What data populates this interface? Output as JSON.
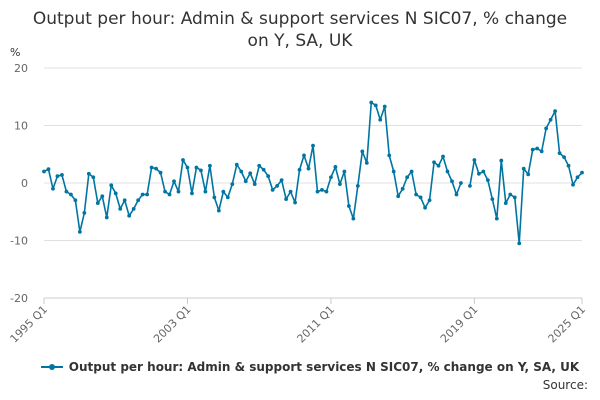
{
  "title": "Output per hour: Admin & support services N SIC07, % change on Y, SA, UK",
  "source_label": "Source:",
  "colors": {
    "series": "#0075A3",
    "grid": "#e0e0e0",
    "axis": "#cccccc"
  },
  "chart_data": {
    "type": "line",
    "title": "Output per hour: Admin & support services N SIC07, % change on Y, SA, UK",
    "ylabel": "%",
    "ylim": [
      -20,
      20
    ],
    "yticks": [
      -20,
      -10,
      0,
      10,
      20
    ],
    "xticks": [
      "1995 Q1",
      "2003 Q1",
      "2011 Q1",
      "2019 Q1",
      "2025 Q1"
    ],
    "grid": true,
    "legend_position": "bottom",
    "series": [
      {
        "name": "Output per hour: Admin & support services N SIC07, % change on Y, SA, UK",
        "color": "#0075A3",
        "x": [
          "1995 Q1",
          "1995 Q2",
          "1995 Q3",
          "1995 Q4",
          "1996 Q1",
          "1996 Q2",
          "1996 Q3",
          "1996 Q4",
          "1997 Q1",
          "1997 Q2",
          "1997 Q3",
          "1997 Q4",
          "1998 Q1",
          "1998 Q2",
          "1998 Q3",
          "1998 Q4",
          "1999 Q1",
          "1999 Q2",
          "1999 Q3",
          "1999 Q4",
          "2000 Q1",
          "2000 Q2",
          "2000 Q3",
          "2000 Q4",
          "2001 Q1",
          "2001 Q2",
          "2001 Q3",
          "2001 Q4",
          "2002 Q1",
          "2002 Q2",
          "2002 Q3",
          "2002 Q4",
          "2003 Q1",
          "2003 Q2",
          "2003 Q3",
          "2003 Q4",
          "2004 Q1",
          "2004 Q2",
          "2004 Q3",
          "2004 Q4",
          "2005 Q1",
          "2005 Q2",
          "2005 Q3",
          "2005 Q4",
          "2006 Q1",
          "2006 Q2",
          "2006 Q3",
          "2006 Q4",
          "2007 Q1",
          "2007 Q2",
          "2007 Q3",
          "2007 Q4",
          "2008 Q1",
          "2008 Q2",
          "2008 Q3",
          "2008 Q4",
          "2009 Q1",
          "2009 Q2",
          "2009 Q3",
          "2009 Q4",
          "2010 Q1",
          "2010 Q2",
          "2010 Q3",
          "2010 Q4",
          "2011 Q1",
          "2011 Q2",
          "2011 Q3",
          "2011 Q4",
          "2012 Q1",
          "2012 Q2",
          "2012 Q3",
          "2012 Q4",
          "2013 Q1",
          "2013 Q2",
          "2013 Q3",
          "2013 Q4",
          "2014 Q1",
          "2014 Q2",
          "2014 Q3",
          "2014 Q4",
          "2015 Q1",
          "2015 Q2",
          "2015 Q3",
          "2015 Q4",
          "2016 Q1",
          "2016 Q2",
          "2016 Q3",
          "2016 Q4",
          "2017 Q1",
          "2017 Q2",
          "2017 Q3",
          "2017 Q4",
          "2018 Q1",
          "2018 Q2",
          "2018 Q3",
          "2018 Q4",
          "2019 Q1",
          "2019 Q2",
          "2019 Q3",
          "2019 Q4",
          "2020 Q1",
          "2020 Q2",
          "2020 Q3",
          "2020 Q4",
          "2021 Q1",
          "2021 Q2",
          "2021 Q3",
          "2021 Q4",
          "2022 Q1",
          "2022 Q2",
          "2022 Q3",
          "2022 Q4",
          "2023 Q1",
          "2023 Q2",
          "2023 Q3",
          "2023 Q4",
          "2024 Q1",
          "2024 Q2",
          "2024 Q3",
          "2024 Q4",
          "2025 Q1"
        ],
        "values": [
          2.0,
          2.4,
          -1.0,
          1.2,
          1.4,
          -1.5,
          -2.0,
          -3.0,
          -8.5,
          -5.2,
          1.6,
          1.0,
          -3.5,
          -2.3,
          -6.0,
          -0.4,
          -1.8,
          -4.5,
          -3.0,
          -5.7,
          -4.5,
          -3.0,
          -2.0,
          -2.0,
          2.7,
          2.5,
          1.8,
          -1.5,
          -2.0,
          0.3,
          -1.5,
          4.0,
          2.7,
          -1.8,
          2.7,
          2.2,
          -1.5,
          3.0,
          -2.5,
          -4.8,
          -1.5,
          -2.5,
          -0.2,
          3.2,
          2.0,
          0.3,
          1.7,
          -0.2,
          3.0,
          2.3,
          1.2,
          -1.2,
          -0.5,
          0.5,
          -2.8,
          -1.5,
          -3.4,
          2.3,
          4.8,
          2.5,
          6.5,
          -1.5,
          -1.2,
          -1.5,
          1.0,
          2.8,
          -0.2,
          2.0,
          -4.0,
          -6.2,
          -0.5,
          5.5,
          3.5,
          14.0,
          13.5,
          11.0,
          13.3,
          4.8,
          2.0,
          -2.3,
          -1.0,
          1.0,
          2.0,
          -2.0,
          -2.5,
          -4.3,
          -3.0,
          3.6,
          3.0,
          4.6,
          2.0,
          0.3,
          -2.0,
          0.0,
          null,
          -0.5,
          4.0,
          1.6,
          2.0,
          0.5,
          -2.8,
          -6.2,
          3.9,
          -3.5,
          -2.0,
          -2.5,
          -10.5,
          2.5,
          1.5,
          5.8,
          6.0,
          5.5,
          9.5,
          11.0,
          12.5,
          5.2,
          4.5,
          3.0,
          -0.3,
          1.0,
          1.8
        ]
      }
    ]
  }
}
